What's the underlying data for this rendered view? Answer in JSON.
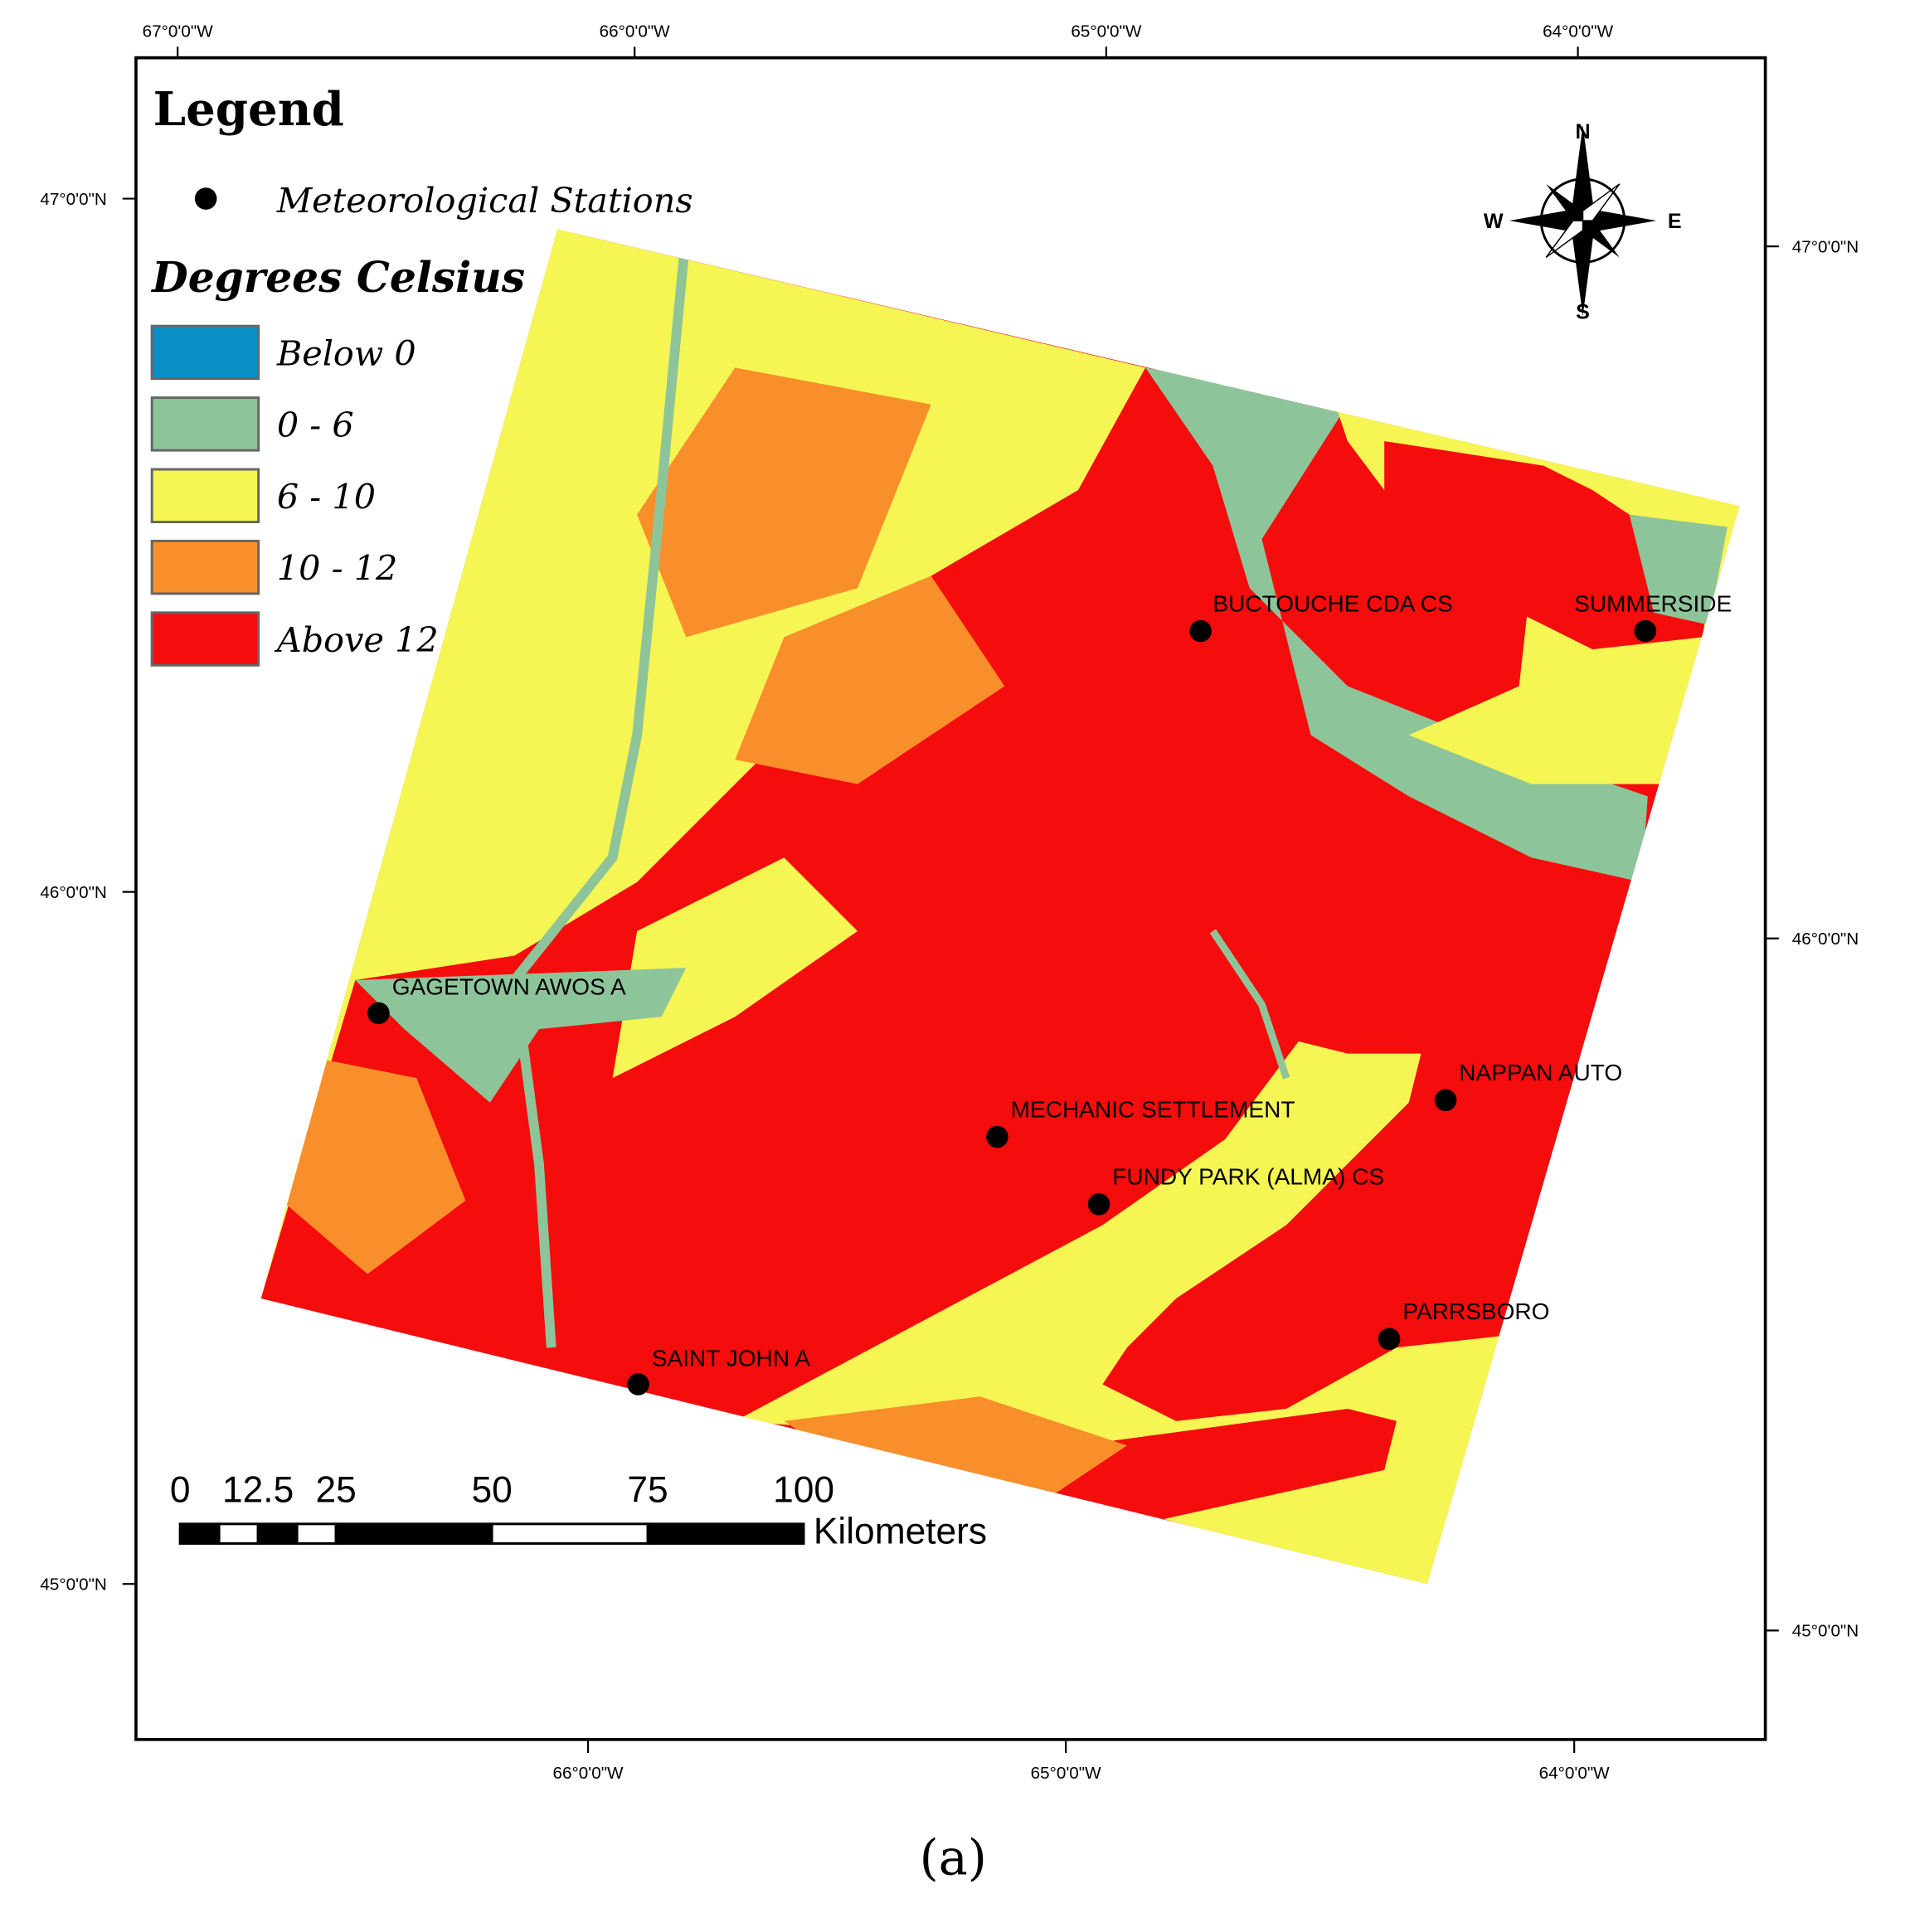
{
  "legend": {
    "title": "Legend",
    "station_label": "Meteorological Stations",
    "classes_title": "Degrees Celsius",
    "classes": [
      {
        "label": "Below 0",
        "color": "#0a8fc7"
      },
      {
        "label": "0 - 6",
        "color": "#8ec49a"
      },
      {
        "label": "6 - 10",
        "color": "#f5f553"
      },
      {
        "label": "10 - 12",
        "color": "#f98f2a"
      },
      {
        "label": "Above 12",
        "color": "#f50c0c"
      }
    ]
  },
  "stations": [
    "BUCTOUCHE CDA CS",
    "SUMMERSIDE",
    "GAGETOWN AWOS A",
    "MECHANIC SETTLEMENT",
    "FUNDY PARK (ALMA) CS",
    "NAPPAN AUTO",
    "PARRSBORO",
    "SAINT JOHN A"
  ],
  "graticule": {
    "top": [
      "67°0'0\"W",
      "66°0'0\"W",
      "65°0'0\"W",
      "64°0'0\"W"
    ],
    "bottom": [
      "66°0'0\"W",
      "65°0'0\"W",
      "64°0'0\"W"
    ],
    "left": [
      "47°0'0\"N",
      "46°0'0\"N",
      "45°0'0\"N"
    ],
    "right": [
      "47°0'0\"N",
      "46°0'0\"N",
      "45°0'0\"N"
    ]
  },
  "scale_bar": {
    "ticks": [
      0,
      12.5,
      25,
      50,
      75,
      100
    ],
    "unit": "Kilometers"
  },
  "compass": {
    "n": "N",
    "e": "E",
    "s": "S",
    "w": "W"
  },
  "caption": "(a)"
}
